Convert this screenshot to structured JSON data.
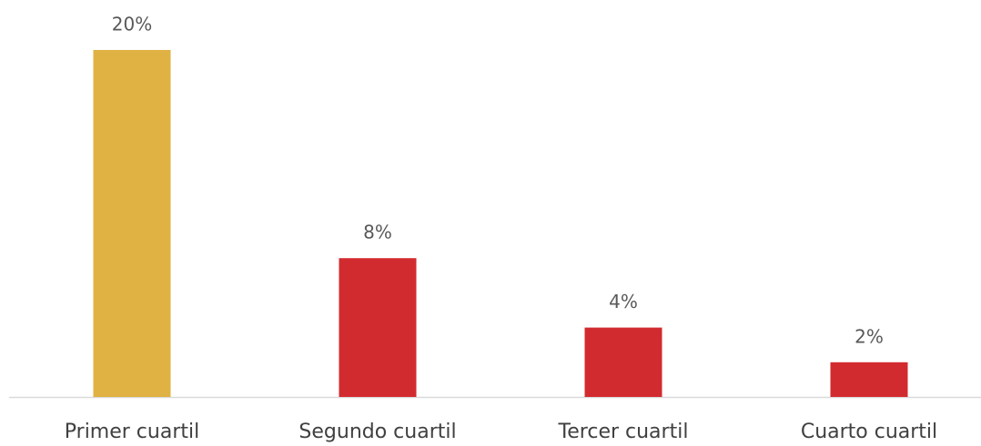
{
  "chart_data": {
    "type": "bar",
    "categories": [
      "Primer cuartil",
      "Segundo cuartil",
      "Tercer cuartil",
      "Cuarto cuartil"
    ],
    "values": [
      20,
      8,
      4,
      2
    ],
    "value_labels": [
      "20%",
      "8%",
      "4%",
      "2%"
    ],
    "colors": [
      "#e0b243",
      "#d22b2f",
      "#d22b2f",
      "#d22b2f"
    ]
  }
}
